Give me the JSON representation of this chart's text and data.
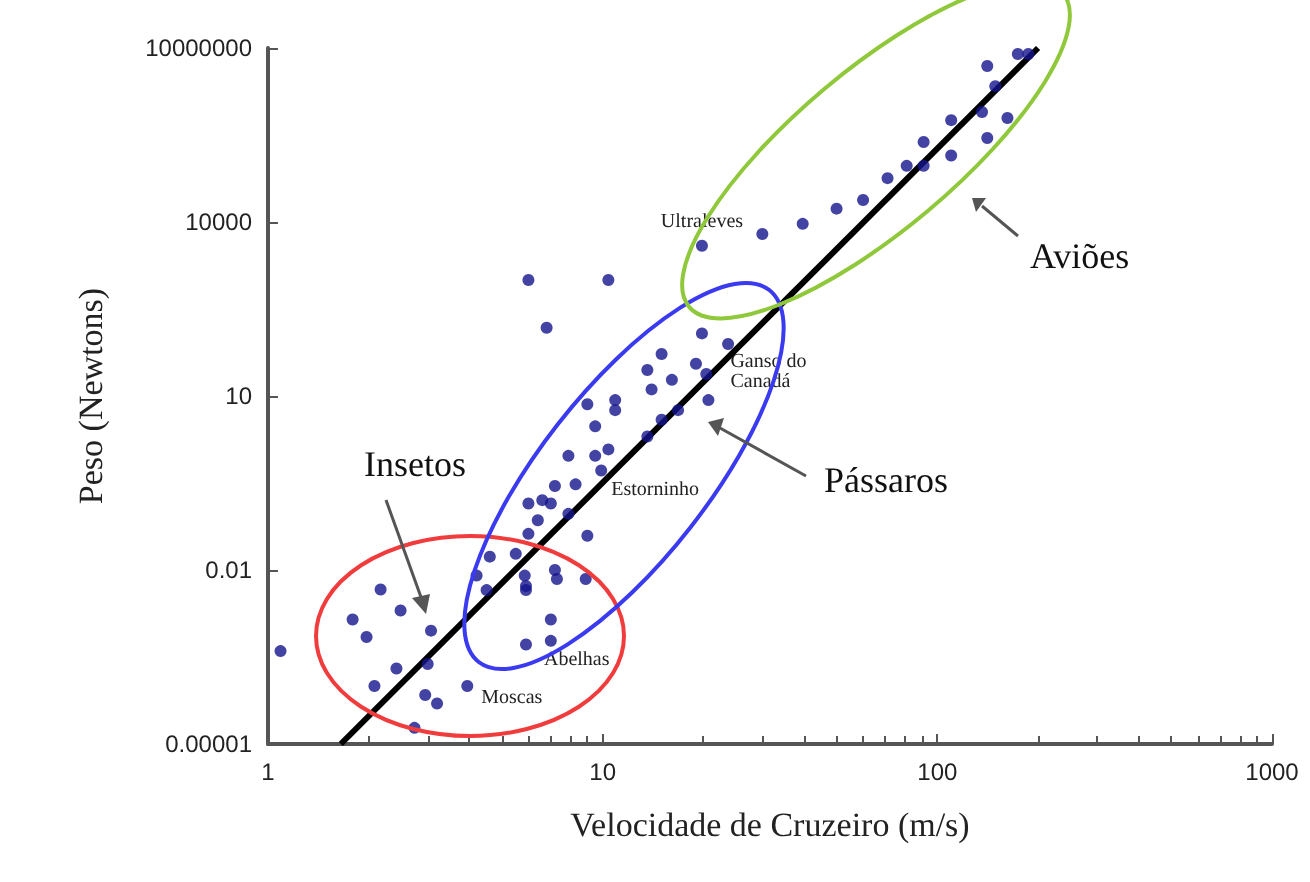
{
  "chart_data": {
    "type": "scatter",
    "xlabel": "Velocidade de Cruzeiro (m/s)",
    "ylabel": "Peso (Newtons)",
    "log": "xy",
    "grid": false,
    "marker": "circle",
    "xlim": [
      1,
      1000
    ],
    "xticks": [
      1,
      10,
      100,
      1000
    ],
    "ylim": [
      1e-05,
      10000000
    ],
    "yticks": [
      {
        "value": 1e-05,
        "label": "0.00001"
      },
      0.01,
      10,
      10000,
      10000000
    ],
    "series": [
      {
        "color": "#14148c",
        "x": [
          1.09,
          1.79,
          2.17,
          2.49,
          3.07,
          1.97,
          2.08,
          2.42,
          3.0,
          2.95,
          3.2,
          2.74,
          3.94,
          4.5,
          5.9,
          5.85,
          7.2,
          7.3,
          8.9,
          5.9,
          7.0,
          7.0,
          5.9,
          9.0,
          10.9,
          10.9,
          9.5,
          7.9,
          9.5,
          10.4,
          9.9,
          7.2,
          8.3,
          6.6,
          6.0,
          7.0,
          6.4,
          7.9,
          6.0,
          9.0,
          5.5,
          4.6,
          4.2,
          13.6,
          15.0,
          16.8,
          14.0,
          13.6,
          15.0,
          16.1,
          19.0,
          20.7,
          20.4,
          6.0,
          10.4,
          6.8,
          19.8,
          30,
          19.8,
          23.7,
          39.6,
          50,
          60,
          71,
          81,
          91,
          91,
          110,
          110,
          136,
          162,
          141,
          149,
          141,
          174,
          187
        ],
        "values": [
          0.0004,
          0.0014,
          0.0046,
          0.002,
          0.0009,
          0.0007,
          0.0001,
          0.0002,
          0.00024,
          7e-05,
          5e-05,
          1.9e-05,
          0.0001,
          0.0045,
          0.0053,
          0.008,
          0.01,
          0.007,
          0.007,
          0.00052,
          0.0014,
          0.0006,
          0.0045,
          7.2,
          8.5,
          5.7,
          3.0,
          0.93,
          0.93,
          1.2,
          0.52,
          0.28,
          0.3,
          0.16,
          0.14,
          0.14,
          0.072,
          0.093,
          0.042,
          0.039,
          0.019,
          0.017,
          0.008,
          2.0,
          3.9,
          5.7,
          13,
          28,
          53,
          19,
          36,
          8.5,
          24,
          1000,
          1000,
          150,
          3900,
          6200,
          120,
          79,
          9300,
          17000,
          24000,
          57000,
          93000,
          93000,
          240000,
          140000,
          570000,
          790000,
          620000,
          280000,
          2200000,
          4900000,
          7900000,
          7900000
        ]
      },
      {
        "type": "line",
        "color": "#000000",
        "marker": "none",
        "x": [
          1.65,
          200
        ],
        "values": [
          1e-05,
          10000000
        ]
      }
    ],
    "annotations": [
      {
        "text": "Ultraleves",
        "x": 19.8,
        "y": 3900
      },
      {
        "text": "Ganso do Canadá",
        "x": 20.7,
        "y": 8.5
      },
      {
        "text": "Estorninho",
        "x": 9.9,
        "y": 0.52
      },
      {
        "text": "Abelhas",
        "x": 5.9,
        "y": 0.00052
      },
      {
        "text": "Moscas",
        "x": 3.94,
        "y": 0.0001
      },
      "Insetos",
      "Pássaros",
      "Aviões"
    ]
  }
}
